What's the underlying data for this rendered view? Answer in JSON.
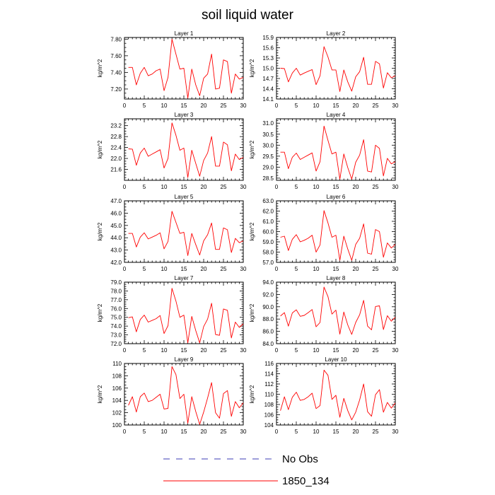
{
  "title": "soil liquid water",
  "legend": [
    {
      "label": "No Obs",
      "color": "#3c3cb4",
      "dash": true
    },
    {
      "label": "1850_134",
      "color": "#ff0000",
      "dash": false
    }
  ],
  "chart_data": [
    {
      "type": "line",
      "title": "Layer 1",
      "ylabel": "kg/m^2",
      "xlim": [
        0,
        30
      ],
      "ylim": [
        7.08,
        7.82
      ],
      "xticks": [
        0,
        5,
        10,
        15,
        20,
        25,
        30
      ],
      "yticks": [
        7.2,
        7.4,
        7.6,
        7.8
      ],
      "ytick_labels": [
        "7.20",
        "7.40",
        "7.60",
        "7.80"
      ],
      "series": [
        {
          "color": "#ff0000",
          "x": [
            1,
            2,
            3,
            4,
            5,
            6,
            7,
            8,
            9,
            10,
            11,
            12,
            13,
            14,
            15,
            16,
            17,
            18,
            19,
            20,
            21,
            22,
            23,
            24,
            25,
            26,
            27,
            28,
            29,
            30
          ],
          "y": [
            7.46,
            7.46,
            7.25,
            7.39,
            7.46,
            7.36,
            7.38,
            7.42,
            7.44,
            7.18,
            7.34,
            7.8,
            7.62,
            7.44,
            7.45,
            7.09,
            7.44,
            7.25,
            7.12,
            7.33,
            7.38,
            7.62,
            7.2,
            7.21,
            7.55,
            7.53,
            7.15,
            7.38,
            7.32,
            7.34
          ]
        }
      ]
    },
    {
      "type": "line",
      "title": "Layer 2",
      "ylabel": "kg/m^2",
      "xlim": [
        0,
        30
      ],
      "ylim": [
        14.1,
        15.9
      ],
      "xticks": [
        0,
        5,
        10,
        15,
        20,
        25,
        30
      ],
      "yticks": [
        14.1,
        14.4,
        14.7,
        15.0,
        15.3,
        15.6,
        15.9
      ],
      "ytick_labels": [
        "14.1",
        "14.4",
        "14.7",
        "15.0",
        "15.3",
        "15.6",
        "15.9"
      ],
      "series": [
        {
          "color": "#ff0000",
          "x": [
            1,
            2,
            3,
            4,
            5,
            6,
            7,
            8,
            9,
            10,
            11,
            12,
            13,
            14,
            15,
            16,
            17,
            18,
            19,
            20,
            21,
            22,
            23,
            24,
            25,
            26,
            27,
            28,
            29,
            30
          ],
          "y": [
            15.0,
            14.99,
            14.6,
            14.86,
            15.0,
            14.8,
            14.86,
            14.91,
            14.96,
            14.52,
            14.78,
            15.63,
            15.33,
            14.95,
            14.95,
            14.32,
            14.95,
            14.6,
            14.33,
            14.75,
            14.9,
            15.32,
            14.53,
            14.53,
            15.2,
            15.13,
            14.42,
            14.87,
            14.72,
            14.78
          ]
        }
      ]
    },
    {
      "type": "line",
      "title": "Layer 3",
      "ylabel": "kg/m^2",
      "xlim": [
        0,
        30
      ],
      "ylim": [
        21.2,
        23.45
      ],
      "xticks": [
        0,
        5,
        10,
        15,
        20,
        25,
        30
      ],
      "yticks": [
        21.6,
        22.0,
        22.4,
        22.8,
        23.2
      ],
      "ytick_labels": [
        "21.6",
        "22.0",
        "22.4",
        "22.8",
        "23.2"
      ],
      "series": [
        {
          "color": "#ff0000",
          "x": [
            1,
            2,
            3,
            4,
            5,
            6,
            7,
            8,
            9,
            10,
            11,
            12,
            13,
            14,
            15,
            16,
            17,
            18,
            19,
            20,
            21,
            22,
            23,
            24,
            25,
            26,
            27,
            28,
            29,
            30
          ],
          "y": [
            22.35,
            22.34,
            21.75,
            22.2,
            22.38,
            22.08,
            22.16,
            22.24,
            22.32,
            21.65,
            22.0,
            23.3,
            22.85,
            22.3,
            22.38,
            21.3,
            22.3,
            21.82,
            21.35,
            21.93,
            22.2,
            22.8,
            21.72,
            21.72,
            22.6,
            22.5,
            21.55,
            22.16,
            21.96,
            22.04
          ]
        }
      ]
    },
    {
      "type": "line",
      "title": "Layer 4",
      "ylabel": "kg/m^2",
      "xlim": [
        0,
        30
      ],
      "ylim": [
        28.4,
        31.2
      ],
      "xticks": [
        0,
        5,
        10,
        15,
        20,
        25,
        30
      ],
      "yticks": [
        28.5,
        29.0,
        29.5,
        30.0,
        30.5,
        31.0
      ],
      "ytick_labels": [
        "28.5",
        "29.0",
        "29.5",
        "30.0",
        "30.5",
        "31.0"
      ],
      "series": [
        {
          "color": "#ff0000",
          "x": [
            1,
            2,
            3,
            4,
            5,
            6,
            7,
            8,
            9,
            10,
            11,
            12,
            13,
            14,
            15,
            16,
            17,
            18,
            19,
            20,
            21,
            22,
            23,
            24,
            25,
            26,
            27,
            28,
            29,
            30
          ],
          "y": [
            29.68,
            29.68,
            28.93,
            29.45,
            29.64,
            29.35,
            29.45,
            29.55,
            29.65,
            28.82,
            29.25,
            30.87,
            30.22,
            29.6,
            29.68,
            28.45,
            29.6,
            28.98,
            28.45,
            29.22,
            29.55,
            30.25,
            28.82,
            28.78,
            30.0,
            29.85,
            28.6,
            29.4,
            29.15,
            29.25
          ]
        }
      ]
    },
    {
      "type": "line",
      "title": "Layer 5",
      "ylabel": "kg/m^2",
      "xlim": [
        0,
        30
      ],
      "ylim": [
        42.0,
        47.0
      ],
      "xticks": [
        0,
        5,
        10,
        15,
        20,
        25,
        30
      ],
      "yticks": [
        42.0,
        43.0,
        44.0,
        45.0,
        46.0,
        47.0
      ],
      "ytick_labels": [
        "42.0",
        "43.0",
        "44.0",
        "45.0",
        "46.0",
        "47.0"
      ],
      "series": [
        {
          "color": "#ff0000",
          "x": [
            1,
            2,
            3,
            4,
            5,
            6,
            7,
            8,
            9,
            10,
            11,
            12,
            13,
            14,
            15,
            16,
            17,
            18,
            19,
            20,
            21,
            22,
            23,
            24,
            25,
            26,
            27,
            28,
            29,
            30
          ],
          "y": [
            44.35,
            44.35,
            43.25,
            44.05,
            44.4,
            43.9,
            44.05,
            44.2,
            44.4,
            43.1,
            43.7,
            46.15,
            45.25,
            44.35,
            44.45,
            42.55,
            44.35,
            43.45,
            42.6,
            43.75,
            44.25,
            45.2,
            43.05,
            43.05,
            44.8,
            44.65,
            42.8,
            43.95,
            43.6,
            43.75
          ]
        }
      ]
    },
    {
      "type": "line",
      "title": "Layer 6",
      "ylabel": "kg/m^2",
      "xlim": [
        0,
        30
      ],
      "ylim": [
        57.0,
        63.0
      ],
      "xticks": [
        0,
        5,
        10,
        15,
        20,
        25,
        30
      ],
      "yticks": [
        57.0,
        58.0,
        59.0,
        60.0,
        61.0,
        62.0,
        63.0
      ],
      "ytick_labels": [
        "57.0",
        "58.0",
        "59.0",
        "60.0",
        "61.0",
        "62.0",
        "63.0"
      ],
      "series": [
        {
          "color": "#ff0000",
          "x": [
            1,
            2,
            3,
            4,
            5,
            6,
            7,
            8,
            9,
            10,
            11,
            12,
            13,
            14,
            15,
            16,
            17,
            18,
            19,
            20,
            21,
            22,
            23,
            24,
            25,
            26,
            27,
            28,
            29,
            30
          ],
          "y": [
            59.45,
            59.55,
            58.15,
            59.25,
            59.7,
            59.0,
            59.15,
            59.35,
            59.65,
            58.0,
            58.7,
            62.05,
            60.85,
            59.45,
            59.65,
            57.2,
            59.55,
            58.3,
            57.2,
            58.75,
            59.35,
            60.75,
            57.9,
            57.8,
            60.2,
            60.0,
            57.5,
            58.9,
            58.4,
            58.75
          ]
        }
      ]
    },
    {
      "type": "line",
      "title": "Layer 7",
      "ylabel": "kg/m^2",
      "xlim": [
        0,
        30
      ],
      "ylim": [
        72.0,
        79.0
      ],
      "xticks": [
        0,
        5,
        10,
        15,
        20,
        25,
        30
      ],
      "yticks": [
        72.0,
        73.0,
        74.0,
        75.0,
        76.0,
        77.0,
        78.0,
        79.0
      ],
      "ytick_labels": [
        "72.0",
        "73.0",
        "74.0",
        "75.0",
        "76.0",
        "77.0",
        "78.0",
        "79.0"
      ],
      "series": [
        {
          "color": "#ff0000",
          "x": [
            1,
            2,
            3,
            4,
            5,
            6,
            7,
            8,
            9,
            10,
            11,
            12,
            13,
            14,
            15,
            16,
            17,
            18,
            19,
            20,
            21,
            22,
            23,
            24,
            25,
            26,
            27,
            28,
            29,
            30
          ],
          "y": [
            74.95,
            75.05,
            73.35,
            74.75,
            75.25,
            74.45,
            74.65,
            74.85,
            75.2,
            73.15,
            74.05,
            78.3,
            76.85,
            75.0,
            75.25,
            72.1,
            75.1,
            73.5,
            72.1,
            73.95,
            74.8,
            76.6,
            73.05,
            72.95,
            75.95,
            75.8,
            72.65,
            74.45,
            73.85,
            74.25
          ]
        }
      ]
    },
    {
      "type": "line",
      "title": "Layer 8",
      "ylabel": "kg/m^2",
      "xlim": [
        0,
        30
      ],
      "ylim": [
        84.0,
        94.0
      ],
      "xticks": [
        0,
        5,
        10,
        15,
        20,
        25,
        30
      ],
      "yticks": [
        84.0,
        86.0,
        88.0,
        90.0,
        92.0,
        94.0
      ],
      "ytick_labels": [
        "84.0",
        "86.0",
        "88.0",
        "90.0",
        "92.0",
        "94.0"
      ],
      "series": [
        {
          "color": "#ff0000",
          "x": [
            1,
            2,
            3,
            4,
            5,
            6,
            7,
            8,
            9,
            10,
            11,
            12,
            13,
            14,
            15,
            16,
            17,
            18,
            19,
            20,
            21,
            22,
            23,
            24,
            25,
            26,
            27,
            28,
            29,
            30
          ],
          "y": [
            88.5,
            89.05,
            86.85,
            89.0,
            89.5,
            88.45,
            88.6,
            89.05,
            89.55,
            86.75,
            87.45,
            93.2,
            91.65,
            88.8,
            89.45,
            85.55,
            89.15,
            87.05,
            85.5,
            87.45,
            88.7,
            91.05,
            86.85,
            86.25,
            90.05,
            90.15,
            86.3,
            88.55,
            87.65,
            88.3
          ]
        }
      ]
    },
    {
      "type": "line",
      "title": "Layer 9",
      "ylabel": "kg/m^2",
      "xlim": [
        0,
        30
      ],
      "ylim": [
        100,
        110
      ],
      "xticks": [
        0,
        5,
        10,
        15,
        20,
        25,
        30
      ],
      "yticks": [
        100,
        102,
        104,
        106,
        108,
        110
      ],
      "ytick_labels": [
        "100",
        "102",
        "104",
        "106",
        "108",
        "110"
      ],
      "series": [
        {
          "color": "#ff0000",
          "x": [
            1,
            2,
            3,
            4,
            5,
            6,
            7,
            8,
            9,
            10,
            11,
            12,
            13,
            14,
            15,
            16,
            17,
            18,
            19,
            20,
            21,
            22,
            23,
            24,
            25,
            26,
            27,
            28,
            29,
            30
          ],
          "y": [
            103.2,
            104.6,
            102.1,
            104.6,
            105.2,
            103.8,
            104.0,
            104.5,
            105.0,
            102.6,
            102.7,
            109.5,
            108.2,
            104.3,
            105.0,
            100.3,
            104.6,
            102.2,
            100.1,
            102.1,
            104.4,
            106.9,
            102.0,
            101.1,
            105.1,
            105.6,
            101.4,
            103.8,
            102.8,
            103.6
          ]
        }
      ]
    },
    {
      "type": "line",
      "title": "Layer 10",
      "ylabel": "kg/m^2",
      "xlim": [
        0,
        30
      ],
      "ylim": [
        104,
        116
      ],
      "xticks": [
        0,
        5,
        10,
        15,
        20,
        25,
        30
      ],
      "yticks": [
        104,
        106,
        108,
        110,
        112,
        114,
        116
      ],
      "ytick_labels": [
        "104",
        "106",
        "108",
        "110",
        "112",
        "114",
        "116"
      ],
      "series": [
        {
          "color": "#ff0000",
          "x": [
            1,
            2,
            3,
            4,
            5,
            6,
            7,
            8,
            9,
            10,
            11,
            12,
            13,
            14,
            15,
            16,
            17,
            18,
            19,
            20,
            21,
            22,
            23,
            24,
            25,
            26,
            27,
            28,
            29,
            30
          ],
          "y": [
            106.8,
            109.5,
            107.0,
            109.4,
            110.4,
            108.8,
            109.0,
            109.5,
            110.2,
            107.2,
            107.8,
            114.7,
            113.7,
            109.0,
            109.8,
            105.5,
            109.2,
            106.8,
            105.0,
            106.5,
            108.9,
            112.0,
            106.6,
            105.7,
            109.9,
            110.9,
            106.5,
            108.4,
            107.3,
            108.3
          ]
        }
      ]
    }
  ]
}
